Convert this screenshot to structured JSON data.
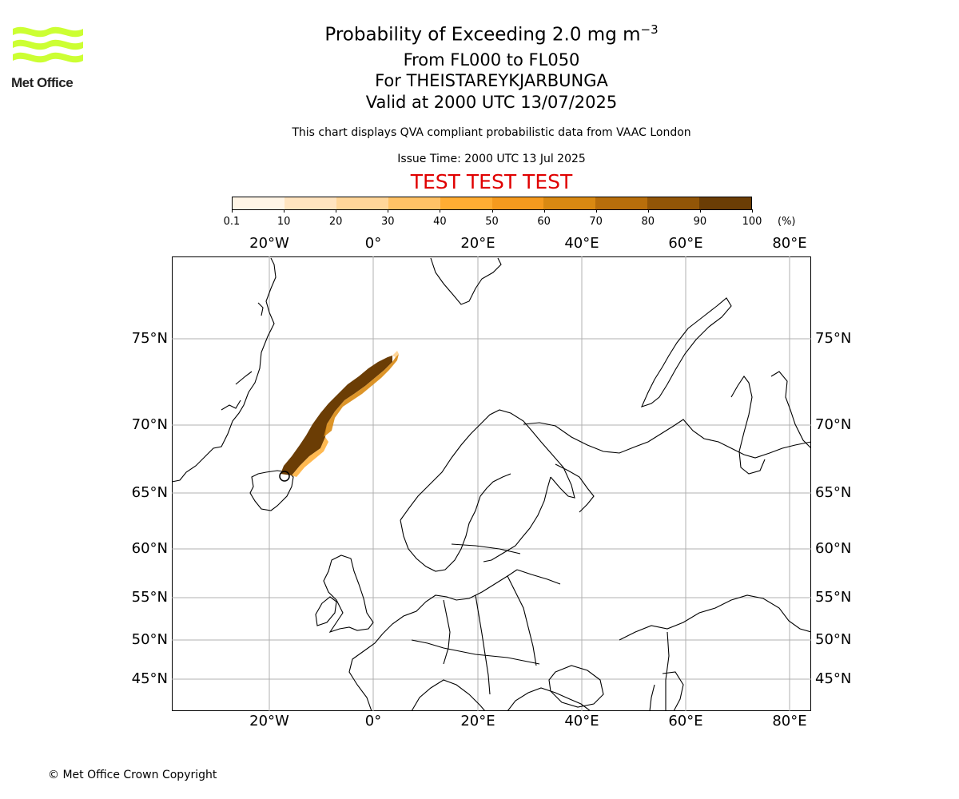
{
  "header": {
    "title_main": "Probability of Exceeding 2.0 mg m",
    "title_exp": "−3",
    "subtitle_levels": "From FL000 to FL050",
    "subtitle_volcano": "For THEISTAREYKJARBUNGA",
    "subtitle_valid": "Valid at 2000 UTC 13/07/2025",
    "disclaimer": "This chart displays QVA compliant probabilistic data from VAAC London",
    "issue_time": "Issue Time: 2000 UTC 13 Jul 2025",
    "test_banner": "TEST TEST TEST"
  },
  "logo": {
    "text": "Met Office",
    "accent": "#ccff33"
  },
  "colorbar": {
    "ticks": [
      "0.1",
      "10",
      "20",
      "30",
      "40",
      "50",
      "60",
      "70",
      "80",
      "90",
      "100"
    ],
    "unit": "(%)",
    "colors": [
      "#fff5e6",
      "#ffe4bf",
      "#ffd699",
      "#ffc266",
      "#ffad33",
      "#f59a1e",
      "#d98912",
      "#b86e0b",
      "#925507",
      "#6b3d05"
    ]
  },
  "map": {
    "lon_labels": [
      "20°W",
      "0°",
      "20°E",
      "40°E",
      "60°E",
      "80°E"
    ],
    "lat_labels": [
      "75°N",
      "70°N",
      "65°N",
      "60°N",
      "55°N",
      "50°N",
      "45°N"
    ],
    "test_color": "#e00000"
  },
  "footer": {
    "copyright": "© Met Office Crown Copyright"
  }
}
